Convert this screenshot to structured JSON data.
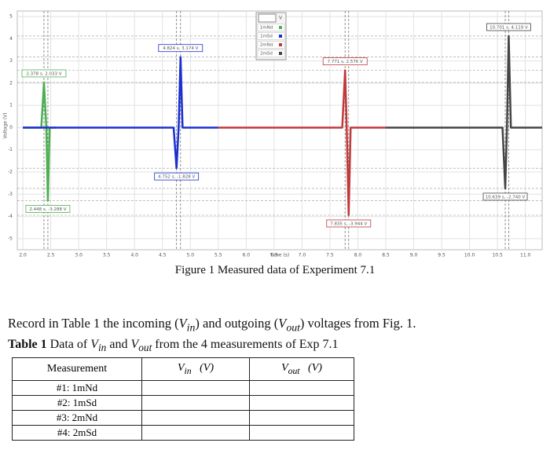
{
  "chart_data": {
    "type": "line",
    "xlabel": "Time (s)",
    "ylabel": "Voltage (V)",
    "xlim": [
      1.9,
      11.3
    ],
    "ylim": [
      -5.5,
      5.25
    ],
    "xticks": [
      {
        "value": 2,
        "label": "2.0"
      },
      {
        "value": 2.5,
        "label": "2.5"
      },
      {
        "value": 3,
        "label": "3.0"
      },
      {
        "value": 3.5,
        "label": "3.5"
      },
      {
        "value": 4,
        "label": "4.0"
      },
      {
        "value": 4.5,
        "label": "4.5"
      },
      {
        "value": 5,
        "label": "5.0"
      },
      {
        "value": 5.5,
        "label": "5.5"
      },
      {
        "value": 6,
        "label": "6.0"
      },
      {
        "value": 6.5,
        "label": "6.5"
      },
      {
        "value": 7,
        "label": "7.0"
      },
      {
        "value": 7.5,
        "label": "7.5"
      },
      {
        "value": 8,
        "label": "8.0"
      },
      {
        "value": 8.5,
        "label": "8.5"
      },
      {
        "value": 9,
        "label": "9.0"
      },
      {
        "value": 9.5,
        "label": "9.5"
      },
      {
        "value": 10,
        "label": "10.0"
      },
      {
        "value": 10.5,
        "label": "10.5"
      },
      {
        "value": 11,
        "label": "11.0"
      }
    ],
    "yticks": [
      5,
      4,
      3,
      2,
      1,
      0,
      -1,
      -2,
      -3,
      -4,
      -5
    ],
    "grid": true,
    "legend_header": "V",
    "series": [
      {
        "name": "1mNd",
        "color": "#4cb050",
        "x": [
          2.0,
          2.33,
          2.378,
          2.42,
          2.448,
          2.48,
          2.6
        ],
        "values": [
          0,
          0,
          2.033,
          0,
          -3.288,
          0,
          0
        ],
        "value_labels": [
          null,
          null,
          "2.378 s, 2.033 V",
          null,
          "2.448 s, -3.288 V",
          null,
          null
        ]
      },
      {
        "name": "1mSd",
        "color": "#1a2fd0",
        "x": [
          2.0,
          4.7,
          4.752,
          4.79,
          4.824,
          4.86,
          5.5
        ],
        "values": [
          0,
          0,
          -1.828,
          0,
          3.174,
          0,
          0
        ],
        "value_labels": [
          null,
          null,
          "4.752 s, -1.828 V",
          null,
          "4.824 s, 3.174 V",
          null,
          null
        ]
      },
      {
        "name": "2mNd",
        "color": "#c0393b",
        "x": [
          5.5,
          7.72,
          7.771,
          7.8,
          7.835,
          7.87,
          8.5
        ],
        "values": [
          0,
          0,
          2.576,
          0,
          -3.944,
          0,
          0
        ],
        "value_labels": [
          null,
          null,
          "7.771 s, 2.576 V",
          null,
          "7.835 s, -3.944 V",
          null,
          null
        ]
      },
      {
        "name": "2mSd",
        "color": "#444444",
        "x": [
          8.5,
          10.59,
          10.639,
          10.67,
          10.701,
          10.74,
          11.3
        ],
        "values": [
          0,
          0,
          -2.74,
          0,
          4.119,
          0,
          0
        ],
        "value_labels": [
          null,
          null,
          "10.639 s, -2.740 V",
          null,
          "10.701 s, 4.119 V",
          null,
          null
        ]
      }
    ]
  },
  "caption": "Figure 1 Measured data of Experiment 7.1",
  "instruction": {
    "before": "Record in Table 1 the incoming (",
    "v1": "V",
    "s1": "in",
    "middle": ") and outgoing (",
    "v2": "V",
    "s2": "out",
    "after": ") voltages from Fig. 1."
  },
  "table_caption": {
    "label": "Table 1",
    "before": " Data of ",
    "v1": "V",
    "s1": "in",
    "middle": " and ",
    "v2": "V",
    "s2": "out",
    "after": " from the 4 measurements of Exp 7.1"
  },
  "table": {
    "header": {
      "measurement": "Measurement",
      "vin": {
        "symbol": "V",
        "subscript": "in",
        "unit": "(V)"
      },
      "vout": {
        "symbol": "V",
        "subscript": "out",
        "unit": "(V)"
      }
    },
    "rows": [
      "#1: 1mNd",
      "#2: 1mSd",
      "#3: 2mNd",
      "#4: 2mSd"
    ]
  }
}
